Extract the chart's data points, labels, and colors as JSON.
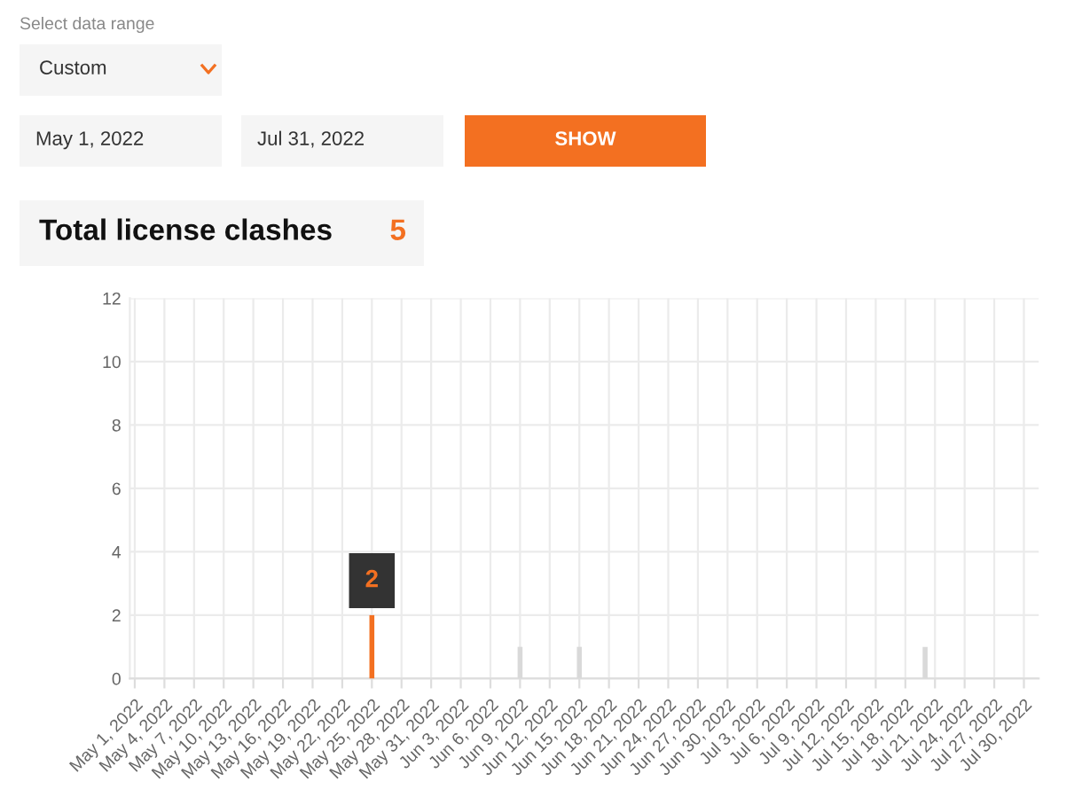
{
  "chart_data": [
    {
      "type": "other",
      "annotations": [
        "Select data range",
        "Custom",
        "May 1, 2022",
        "Jul 31, 2022",
        "SHOW",
        "Total license clashes",
        "5"
      ]
    },
    {
      "type": "bar",
      "categories": [
        "May 1, 2022",
        null,
        null,
        "May 4, 2022",
        null,
        null,
        "May 7, 2022",
        null,
        null,
        "May 10, 2022",
        null,
        null,
        "May 13, 2022",
        null,
        null,
        "May 16, 2022",
        null,
        null,
        "May 19, 2022",
        null,
        null,
        "May 22, 2022",
        null,
        null,
        "May 25, 2022",
        null,
        null,
        "May 28, 2022",
        null,
        null,
        "May 31, 2022",
        null,
        null,
        "Jun 3, 2022",
        null,
        null,
        "Jun 6, 2022",
        null,
        null,
        "Jun 9, 2022",
        null,
        null,
        "Jun 12, 2022",
        null,
        null,
        "Jun 15, 2022",
        null,
        null,
        "Jun 18, 2022",
        null,
        null,
        "Jun 21, 2022",
        null,
        null,
        "Jun 24, 2022",
        null,
        null,
        "Jun 27, 2022",
        null,
        null,
        "Jun 30, 2022",
        null,
        null,
        "Jul 3, 2022",
        null,
        null,
        "Jul 6, 2022",
        null,
        null,
        "Jul 9, 2022",
        null,
        null,
        "Jul 12, 2022",
        null,
        null,
        "Jul 15, 2022",
        null,
        null,
        "Jul 18, 2022",
        null,
        null,
        "Jul 21, 2022",
        null,
        null,
        "Jul 24, 2022",
        null,
        null,
        "Jul 27, 2022",
        null,
        null,
        "Jul 30, 2022",
        null
      ],
      "values": [
        0,
        0,
        0,
        0,
        0,
        0,
        0,
        0,
        0,
        0,
        0,
        0,
        0,
        0,
        0,
        0,
        0,
        0,
        0,
        0,
        0,
        0,
        0,
        0,
        2,
        0,
        0,
        0,
        0,
        0,
        0,
        0,
        0,
        0,
        0,
        0,
        0,
        0,
        0,
        1,
        0,
        0,
        0,
        0,
        0,
        1,
        0,
        0,
        0,
        0,
        0,
        0,
        0,
        0,
        0,
        0,
        0,
        0,
        0,
        0,
        0,
        0,
        0,
        0,
        0,
        0,
        0,
        0,
        0,
        0,
        0,
        0,
        0,
        0,
        0,
        0,
        0,
        0,
        0,
        0,
        1,
        0,
        0,
        0,
        0,
        0,
        0,
        0,
        0,
        0,
        0,
        0
      ],
      "colors": [
        "#d9d9d9",
        "#d9d9d9",
        "#d9d9d9",
        "#d9d9d9",
        "#d9d9d9",
        "#d9d9d9",
        "#d9d9d9",
        "#d9d9d9",
        "#d9d9d9",
        "#d9d9d9",
        "#d9d9d9",
        "#d9d9d9",
        "#d9d9d9",
        "#d9d9d9",
        "#d9d9d9",
        "#d9d9d9",
        "#d9d9d9",
        "#d9d9d9",
        "#d9d9d9",
        "#d9d9d9",
        "#d9d9d9",
        "#d9d9d9",
        "#d9d9d9",
        "#d9d9d9",
        "#f37021",
        "#d9d9d9",
        "#d9d9d9",
        "#d9d9d9",
        "#d9d9d9",
        "#d9d9d9",
        "#d9d9d9",
        "#d9d9d9",
        "#d9d9d9",
        "#d9d9d9",
        "#d9d9d9",
        "#d9d9d9",
        "#d9d9d9",
        "#d9d9d9",
        "#d9d9d9",
        "#d9d9d9",
        "#d9d9d9",
        "#d9d9d9",
        "#d9d9d9",
        "#d9d9d9",
        "#d9d9d9",
        "#d9d9d9",
        "#d9d9d9",
        "#d9d9d9",
        "#d9d9d9",
        "#d9d9d9",
        "#d9d9d9",
        "#d9d9d9",
        "#d9d9d9",
        "#d9d9d9",
        "#d9d9d9",
        "#d9d9d9",
        "#d9d9d9",
        "#d9d9d9",
        "#d9d9d9",
        "#d9d9d9",
        "#d9d9d9",
        "#d9d9d9",
        "#d9d9d9",
        "#d9d9d9",
        "#d9d9d9",
        "#d9d9d9",
        "#d9d9d9",
        "#d9d9d9",
        "#d9d9d9",
        "#d9d9d9",
        "#d9d9d9",
        "#d9d9d9",
        "#d9d9d9",
        "#d9d9d9",
        "#d9d9d9",
        "#d9d9d9",
        "#d9d9d9",
        "#d9d9d9",
        "#d9d9d9",
        "#d9d9d9",
        "#d9d9d9",
        "#d9d9d9",
        "#d9d9d9",
        "#d9d9d9",
        "#d9d9d9",
        "#d9d9d9",
        "#d9d9d9",
        "#d9d9d9",
        "#d9d9d9",
        "#d9d9d9",
        "#d9d9d9",
        "#d9d9d9"
      ],
      "ylim": [
        0,
        12
      ],
      "yticks": [
        0,
        2,
        4,
        6,
        8,
        10,
        12
      ],
      "grid": true,
      "annotations": [
        {
          "text": "2",
          "x": "May 25, 2022",
          "y": 2
        }
      ]
    }
  ]
}
